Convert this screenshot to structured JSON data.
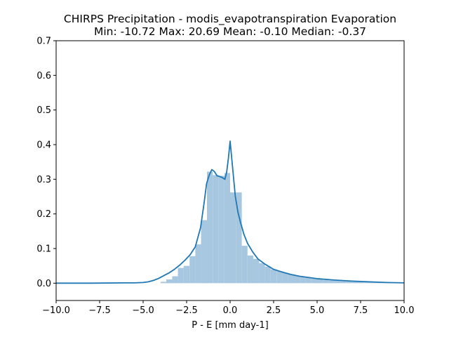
{
  "chart_data": {
    "type": "histogram",
    "title": "CHIRPS Precipitation - modis_evapotranspiration Evaporation",
    "subtitle": "Min: -10.72 Max: 20.69 Mean: -0.10 Median: -0.37",
    "xlabel": "P - E [mm day-1]",
    "ylabel": "",
    "xlim": [
      -10,
      10
    ],
    "ylim": [
      -0.05,
      0.7
    ],
    "xticks": [
      -10,
      -7.5,
      -5,
      -2.5,
      0,
      2.5,
      5,
      7.5,
      10
    ],
    "xtick_labels": [
      "−10.0",
      "−7.5",
      "−5.0",
      "−2.5",
      "0.0",
      "2.5",
      "5.0",
      "7.5",
      "10.0"
    ],
    "yticks": [
      0.0,
      0.1,
      0.2,
      0.3,
      0.4,
      0.5,
      0.6,
      0.7
    ],
    "ytick_labels": [
      "0.0",
      "0.1",
      "0.2",
      "0.3",
      "0.4",
      "0.5",
      "0.6",
      "0.7"
    ],
    "grid": false,
    "colors": {
      "bars": "#a6c7df",
      "line": "#1f77b4"
    },
    "bins": [
      {
        "x0": -4.0,
        "x1": -3.67,
        "value": 0.004
      },
      {
        "x0": -3.67,
        "x1": -3.33,
        "value": 0.011
      },
      {
        "x0": -3.33,
        "x1": -3.0,
        "value": 0.02
      },
      {
        "x0": -3.0,
        "x1": -2.67,
        "value": 0.044
      },
      {
        "x0": -2.67,
        "x1": -2.33,
        "value": 0.05
      },
      {
        "x0": -2.33,
        "x1": -2.0,
        "value": 0.078
      },
      {
        "x0": -2.0,
        "x1": -1.67,
        "value": 0.112
      },
      {
        "x0": -1.67,
        "x1": -1.33,
        "value": 0.182
      },
      {
        "x0": -1.33,
        "x1": -1.0,
        "value": 0.322
      },
      {
        "x0": -1.0,
        "x1": -0.67,
        "value": 0.312
      },
      {
        "x0": -0.67,
        "x1": -0.33,
        "value": 0.31
      },
      {
        "x0": -0.33,
        "x1": 0.0,
        "value": 0.318
      },
      {
        "x0": 0.0,
        "x1": 0.33,
        "value": 0.262
      },
      {
        "x0": 0.33,
        "x1": 0.67,
        "value": 0.262
      },
      {
        "x0": 0.67,
        "x1": 1.0,
        "value": 0.108
      },
      {
        "x0": 1.0,
        "x1": 1.33,
        "value": 0.08
      },
      {
        "x0": 1.33,
        "x1": 1.67,
        "value": 0.07
      },
      {
        "x0": 1.67,
        "x1": 2.0,
        "value": 0.058
      },
      {
        "x0": 2.0,
        "x1": 2.33,
        "value": 0.048
      },
      {
        "x0": 2.33,
        "x1": 2.67,
        "value": 0.04
      },
      {
        "x0": 2.67,
        "x1": 3.0,
        "value": 0.035
      },
      {
        "x0": 3.0,
        "x1": 3.33,
        "value": 0.03
      },
      {
        "x0": 3.33,
        "x1": 3.67,
        "value": 0.026
      },
      {
        "x0": 3.67,
        "x1": 4.0,
        "value": 0.022
      },
      {
        "x0": 4.0,
        "x1": 4.33,
        "value": 0.019
      },
      {
        "x0": 4.33,
        "x1": 4.67,
        "value": 0.016
      },
      {
        "x0": 4.67,
        "x1": 5.0,
        "value": 0.013
      },
      {
        "x0": 5.0,
        "x1": 5.33,
        "value": 0.011
      },
      {
        "x0": 5.33,
        "x1": 5.67,
        "value": 0.009
      },
      {
        "x0": 5.67,
        "x1": 6.0,
        "value": 0.008
      },
      {
        "x0": 6.0,
        "x1": 6.33,
        "value": 0.007
      },
      {
        "x0": 6.33,
        "x1": 6.67,
        "value": 0.006
      },
      {
        "x0": 6.67,
        "x1": 7.0,
        "value": 0.005
      },
      {
        "x0": 7.0,
        "x1": 7.67,
        "value": 0.004
      },
      {
        "x0": 7.67,
        "x1": 8.33,
        "value": 0.003
      },
      {
        "x0": 8.33,
        "x1": 9.0,
        "value": 0.002
      },
      {
        "x0": 9.0,
        "x1": 10.0,
        "value": 0.001
      }
    ],
    "kde": {
      "x": [
        -10,
        -8,
        -6,
        -5.5,
        -5,
        -4.7,
        -4.4,
        -4.1,
        -3.8,
        -3.5,
        -3.2,
        -2.9,
        -2.6,
        -2.3,
        -2.0,
        -1.7,
        -1.5,
        -1.35,
        -1.2,
        -1.05,
        -0.9,
        -0.75,
        -0.6,
        -0.45,
        -0.3,
        -0.2,
        -0.1,
        0.0,
        0.15,
        0.3,
        0.45,
        0.6,
        0.8,
        1.0,
        1.3,
        1.6,
        2.0,
        2.5,
        3.0,
        3.5,
        4.0,
        5.0,
        6.0,
        7.0,
        8.0,
        9.0,
        10.0
      ],
      "y": [
        0.0,
        0.0,
        0.001,
        0.001,
        0.002,
        0.004,
        0.008,
        0.014,
        0.022,
        0.03,
        0.04,
        0.052,
        0.066,
        0.082,
        0.105,
        0.16,
        0.23,
        0.288,
        0.312,
        0.328,
        0.322,
        0.31,
        0.308,
        0.305,
        0.3,
        0.32,
        0.36,
        0.41,
        0.33,
        0.25,
        0.205,
        0.175,
        0.14,
        0.115,
        0.09,
        0.07,
        0.055,
        0.04,
        0.032,
        0.025,
        0.02,
        0.013,
        0.009,
        0.006,
        0.004,
        0.002,
        0.001
      ]
    }
  }
}
